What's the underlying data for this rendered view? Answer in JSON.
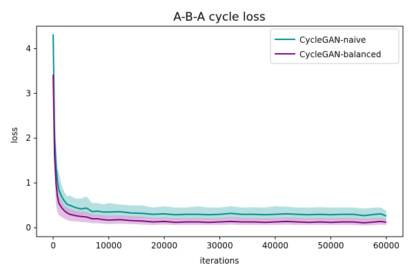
{
  "chart_data": {
    "type": "line",
    "title": "A-B-A cycle loss",
    "xlabel": "iterations",
    "ylabel": "loss",
    "xlim": [
      -3000,
      63000
    ],
    "ylim": [
      -0.2,
      4.5
    ],
    "xticks": [
      0,
      10000,
      20000,
      30000,
      40000,
      50000,
      60000
    ],
    "yticks": [
      0,
      1,
      2,
      3,
      4
    ],
    "xtick_labels": [
      "0",
      "10000",
      "20000",
      "30000",
      "40000",
      "50000",
      "60000"
    ],
    "ytick_labels": [
      "0",
      "1",
      "2",
      "3",
      "4"
    ],
    "grid": false,
    "legend_position": "top-right",
    "series": [
      {
        "name": "CycleGAN-naive",
        "color": "#008b8b",
        "band_color": "#8fd0d0",
        "x": [
          0,
          250,
          500,
          750,
          1000,
          1500,
          2000,
          2500,
          3000,
          4000,
          5000,
          6000,
          7000,
          8000,
          9000,
          10000,
          12000,
          14000,
          16000,
          18000,
          20000,
          22000,
          24000,
          26000,
          28000,
          30000,
          32000,
          34000,
          36000,
          38000,
          40000,
          42000,
          44000,
          46000,
          48000,
          50000,
          52000,
          54000,
          56000,
          58000,
          59000,
          60000
        ],
        "y": [
          4.32,
          2.0,
          1.4,
          1.05,
          0.85,
          0.7,
          0.6,
          0.52,
          0.5,
          0.45,
          0.42,
          0.44,
          0.36,
          0.37,
          0.35,
          0.35,
          0.36,
          0.33,
          0.32,
          0.3,
          0.31,
          0.29,
          0.3,
          0.3,
          0.29,
          0.3,
          0.32,
          0.3,
          0.3,
          0.29,
          0.3,
          0.31,
          0.3,
          0.29,
          0.3,
          0.29,
          0.3,
          0.3,
          0.27,
          0.3,
          0.31,
          0.26
        ],
        "band_upper": [
          4.32,
          2.45,
          1.9,
          1.3,
          1.25,
          0.95,
          0.8,
          0.7,
          0.72,
          0.65,
          0.65,
          0.7,
          0.55,
          0.55,
          0.52,
          0.55,
          0.52,
          0.5,
          0.5,
          0.45,
          0.48,
          0.45,
          0.45,
          0.48,
          0.45,
          0.45,
          0.48,
          0.45,
          0.46,
          0.45,
          0.48,
          0.47,
          0.45,
          0.45,
          0.46,
          0.45,
          0.45,
          0.45,
          0.43,
          0.45,
          0.45,
          0.38
        ],
        "band_lower": [
          4.32,
          1.5,
          1.0,
          0.75,
          0.6,
          0.5,
          0.42,
          0.36,
          0.33,
          0.3,
          0.28,
          0.3,
          0.24,
          0.25,
          0.22,
          0.22,
          0.23,
          0.2,
          0.2,
          0.18,
          0.19,
          0.17,
          0.18,
          0.18,
          0.17,
          0.18,
          0.2,
          0.18,
          0.18,
          0.17,
          0.18,
          0.19,
          0.18,
          0.17,
          0.18,
          0.17,
          0.18,
          0.18,
          0.16,
          0.18,
          0.19,
          0.16
        ]
      },
      {
        "name": "CycleGAN-balanced",
        "color": "#800080",
        "band_color": "#d39fd3",
        "x": [
          0,
          250,
          500,
          750,
          1000,
          1500,
          2000,
          2500,
          3000,
          4000,
          5000,
          6000,
          7000,
          8000,
          9000,
          10000,
          12000,
          14000,
          16000,
          18000,
          20000,
          22000,
          24000,
          26000,
          28000,
          30000,
          32000,
          34000,
          36000,
          38000,
          40000,
          42000,
          44000,
          46000,
          48000,
          50000,
          52000,
          54000,
          56000,
          58000,
          59000,
          60000
        ],
        "y": [
          3.42,
          1.6,
          1.0,
          0.7,
          0.55,
          0.45,
          0.38,
          0.33,
          0.3,
          0.27,
          0.25,
          0.24,
          0.2,
          0.2,
          0.18,
          0.17,
          0.18,
          0.16,
          0.15,
          0.13,
          0.14,
          0.12,
          0.13,
          0.13,
          0.12,
          0.13,
          0.14,
          0.13,
          0.13,
          0.12,
          0.13,
          0.14,
          0.13,
          0.12,
          0.13,
          0.12,
          0.13,
          0.13,
          0.11,
          0.13,
          0.14,
          0.12
        ],
        "band_upper": [
          3.42,
          1.95,
          1.2,
          0.88,
          0.72,
          0.6,
          0.5,
          0.45,
          0.42,
          0.38,
          0.36,
          0.35,
          0.3,
          0.3,
          0.28,
          0.27,
          0.28,
          0.26,
          0.25,
          0.22,
          0.23,
          0.21,
          0.22,
          0.22,
          0.21,
          0.22,
          0.24,
          0.22,
          0.22,
          0.21,
          0.22,
          0.23,
          0.22,
          0.21,
          0.22,
          0.21,
          0.22,
          0.22,
          0.2,
          0.22,
          0.22,
          0.2
        ],
        "band_lower": [
          3.42,
          1.3,
          0.5,
          0.35,
          0.28,
          0.24,
          0.2,
          0.17,
          0.15,
          0.14,
          0.13,
          0.12,
          0.1,
          0.1,
          0.09,
          0.08,
          0.09,
          0.08,
          0.07,
          0.06,
          0.07,
          0.06,
          0.06,
          0.06,
          0.06,
          0.06,
          0.07,
          0.06,
          0.06,
          0.06,
          0.06,
          0.07,
          0.06,
          0.06,
          0.06,
          0.06,
          0.06,
          0.06,
          0.05,
          0.06,
          0.07,
          0.06
        ]
      }
    ]
  }
}
